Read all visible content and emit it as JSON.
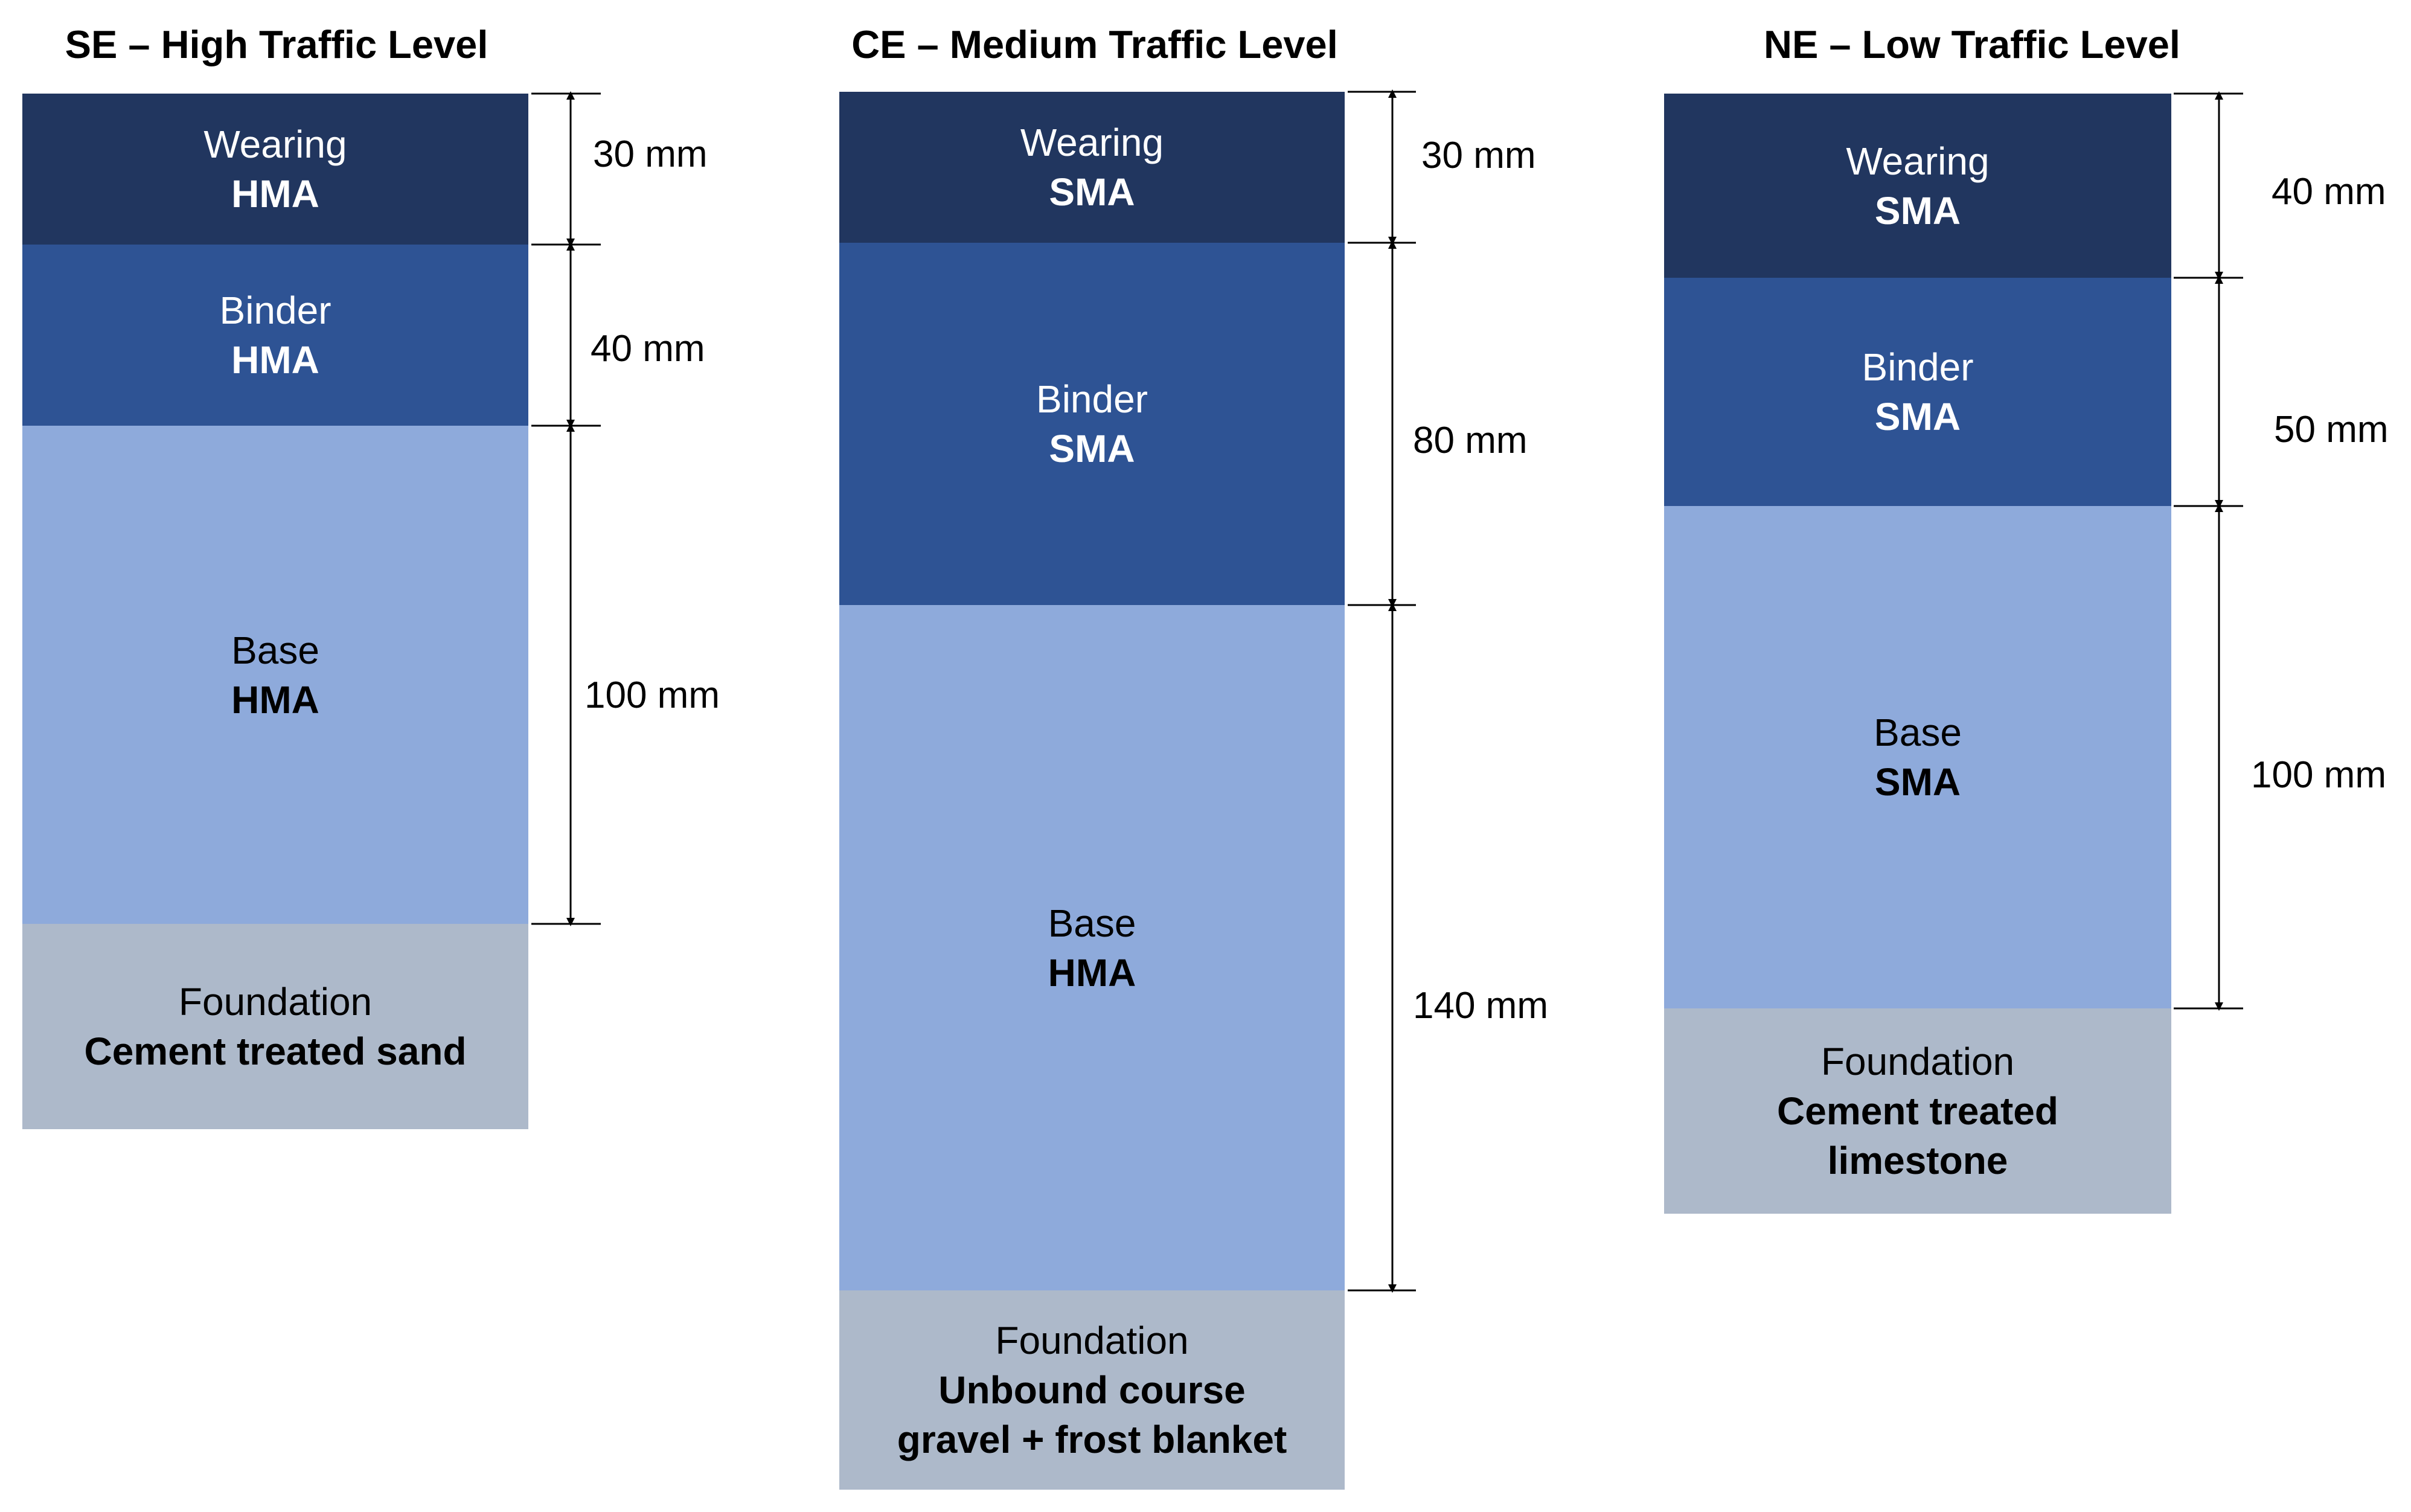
{
  "colors": {
    "wearing": "#21365f",
    "binder": "#2e5394",
    "base": "#8eaadb",
    "foundation": "#adb9ca"
  },
  "sections": [
    {
      "title": "SE – High Traffic Level",
      "layers": [
        {
          "name": "Wearing",
          "material": "HMA",
          "thickness": "30 mm"
        },
        {
          "name": "Binder",
          "material": "HMA",
          "thickness": "40 mm"
        },
        {
          "name": "Base",
          "material": "HMA",
          "thickness": "100 mm"
        }
      ],
      "foundation": {
        "name": "Foundation",
        "material": "Cement treated sand"
      }
    },
    {
      "title": "CE – Medium Traffic Level",
      "layers": [
        {
          "name": "Wearing",
          "material": "SMA",
          "thickness": "30 mm"
        },
        {
          "name": "Binder",
          "material": "SMA",
          "thickness": "80 mm"
        },
        {
          "name": "Base",
          "material": "HMA",
          "thickness": "140 mm"
        }
      ],
      "foundation": {
        "name": "Foundation",
        "material": "Unbound course\ngravel + frost blanket"
      }
    },
    {
      "title": "NE – Low Traffic Level",
      "layers": [
        {
          "name": "Wearing",
          "material": "SMA",
          "thickness": "40 mm"
        },
        {
          "name": "Binder",
          "material": "SMA",
          "thickness": "50 mm"
        },
        {
          "name": "Base",
          "material": "SMA",
          "thickness": "100 mm"
        }
      ],
      "foundation": {
        "name": "Foundation",
        "material": "Cement treated\nlimestone"
      }
    }
  ]
}
